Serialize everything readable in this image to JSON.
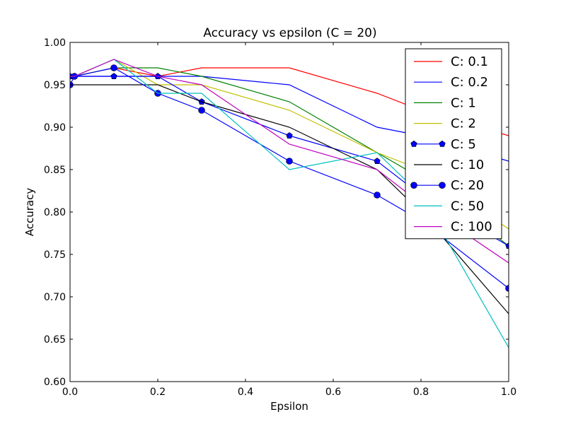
{
  "chart_data": {
    "type": "line",
    "title": "Accuracy vs epsilon (C = 20)",
    "xlabel": "Epsilon",
    "ylabel": "Accuracy",
    "xlim": [
      0.0,
      1.0
    ],
    "ylim": [
      0.6,
      1.0
    ],
    "x_ticks": [
      "0.0",
      "0.2",
      "0.4",
      "0.6",
      "0.8",
      "1.0"
    ],
    "y_ticks": [
      "0.60",
      "0.65",
      "0.70",
      "0.75",
      "0.80",
      "0.85",
      "0.90",
      "0.95",
      "1.00"
    ],
    "grid": false,
    "legend_position": "top-right",
    "x": [
      0.0,
      0.01,
      0.1,
      0.2,
      0.3,
      0.5,
      0.7,
      0.8,
      1.0
    ],
    "series": [
      {
        "name": "C: 0.1",
        "color": "#ff0000",
        "marker": "none",
        "values": [
          0.96,
          0.96,
          0.97,
          0.96,
          0.97,
          0.97,
          0.94,
          0.92,
          0.89
        ]
      },
      {
        "name": "C: 0.2",
        "color": "#0000ff",
        "marker": "none",
        "values": [
          0.96,
          0.96,
          0.96,
          0.96,
          0.96,
          0.95,
          0.9,
          0.89,
          0.86
        ]
      },
      {
        "name": "C: 1",
        "color": "#008000",
        "marker": "none",
        "values": [
          0.96,
          0.96,
          0.97,
          0.97,
          0.96,
          0.93,
          0.87,
          0.84,
          0.76
        ]
      },
      {
        "name": "C: 2",
        "color": "#bfbf00",
        "marker": "none",
        "values": [
          0.96,
          0.96,
          0.98,
          0.95,
          0.95,
          0.92,
          0.87,
          0.85,
          0.78
        ]
      },
      {
        "name": "C: 5",
        "color": "#0000ff",
        "marker": "pentagon",
        "values": [
          0.96,
          0.96,
          0.96,
          0.96,
          0.93,
          0.89,
          0.86,
          0.82,
          0.76
        ]
      },
      {
        "name": "C: 10",
        "color": "#000000",
        "marker": "none",
        "values": [
          0.95,
          0.95,
          0.95,
          0.95,
          0.93,
          0.9,
          0.85,
          0.8,
          0.68
        ]
      },
      {
        "name": "C: 20",
        "color": "#0000ff",
        "marker": "circle",
        "values": [
          0.95,
          0.96,
          0.97,
          0.94,
          0.92,
          0.86,
          0.82,
          0.79,
          0.71
        ]
      },
      {
        "name": "C: 50",
        "color": "#00bfbf",
        "marker": "none",
        "values": [
          0.96,
          0.96,
          0.98,
          0.94,
          0.94,
          0.85,
          0.87,
          0.82,
          0.64
        ]
      },
      {
        "name": "C: 100",
        "color": "#bf00bf",
        "marker": "none",
        "values": [
          0.96,
          0.96,
          0.98,
          0.96,
          0.95,
          0.88,
          0.85,
          0.81,
          0.74
        ]
      }
    ]
  }
}
